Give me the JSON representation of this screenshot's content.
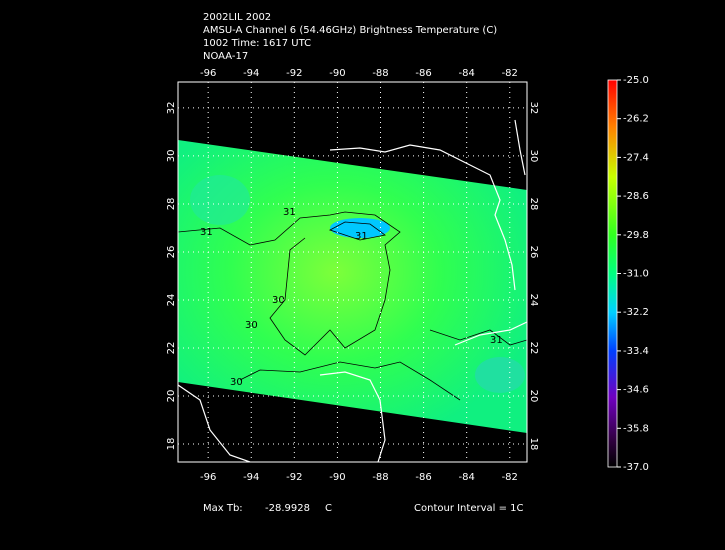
{
  "header": {
    "lines": [
      "2002LIL 2002",
      "AMSU-A Channel 6 (54.46GHz) Brightness Temperature (C)",
      "1002 Time: 1617 UTC",
      "NOAA-17"
    ]
  },
  "map": {
    "xlim": [
      -97.4,
      -81.2
    ],
    "ylim": [
      17.25,
      33.08
    ],
    "xticks": [
      -96,
      -94,
      -92,
      -90,
      -88,
      -86,
      -84,
      -82
    ],
    "yticks": [
      18,
      20,
      22,
      24,
      26,
      28,
      30,
      32
    ],
    "contour_labels": [
      "31",
      "31",
      "30",
      "30",
      "31",
      "31",
      "30"
    ]
  },
  "colorbar": {
    "ylim": [
      -37,
      -25
    ],
    "ticks": [
      {
        "value": -25,
        "label": "-25.0"
      },
      {
        "value": -26.2,
        "label": "-26.2"
      },
      {
        "value": -27.4,
        "label": "-27.4"
      },
      {
        "value": -28.6,
        "label": "-28.6"
      },
      {
        "value": -29.8,
        "label": "-29.8"
      },
      {
        "value": -31,
        "label": "-31.0"
      },
      {
        "value": -32.2,
        "label": "-32.2"
      },
      {
        "value": -33.4,
        "label": "-33.4"
      },
      {
        "value": -34.6,
        "label": "-34.6"
      },
      {
        "value": -35.8,
        "label": "-35.8"
      },
      {
        "value": -37,
        "label": "-37.0"
      }
    ]
  },
  "footer": {
    "max_label": "Max Tb:",
    "max_value": "-28.9928",
    "unit": "C",
    "contour": "Contour Interval = 1C"
  }
}
